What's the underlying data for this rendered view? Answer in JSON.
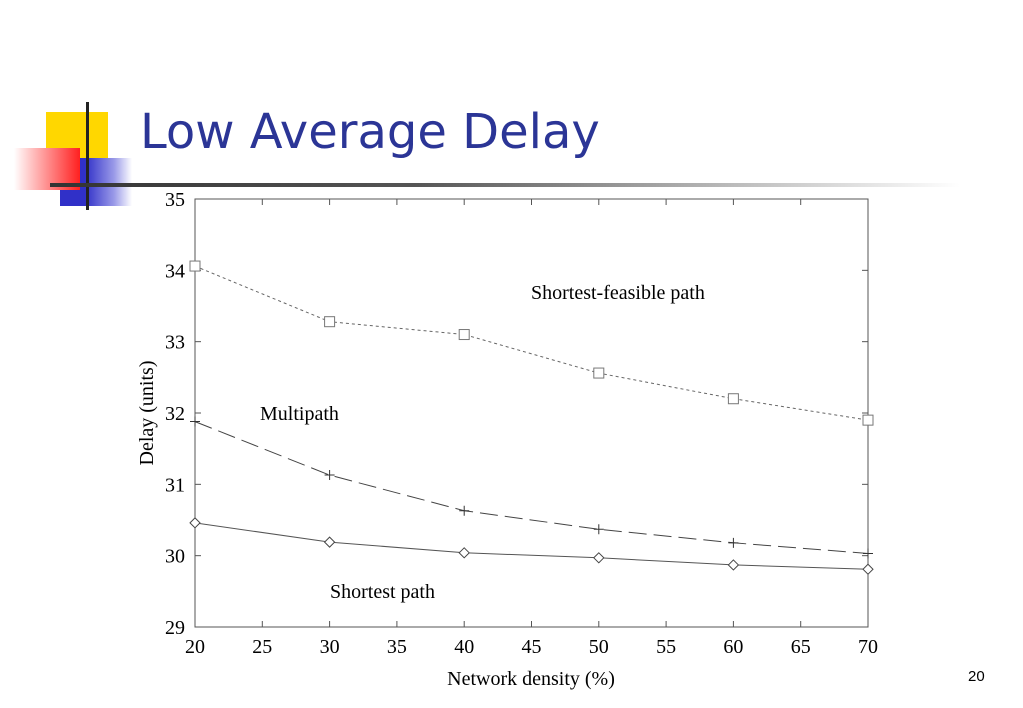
{
  "slide": {
    "title": "Low Average Delay",
    "page_number": "20"
  },
  "colors": {
    "title": "#2b3596",
    "decor_yellow": "#ffd700",
    "decor_red": "#ff2020",
    "decor_blue": "#3030c8"
  },
  "chart_data": {
    "type": "line",
    "title": "",
    "xlabel": "Network density (%)",
    "ylabel": "Delay (units)",
    "xlim": [
      20,
      70
    ],
    "ylim": [
      29,
      35
    ],
    "xticks": [
      20,
      25,
      30,
      35,
      40,
      45,
      50,
      55,
      60,
      65,
      70
    ],
    "yticks": [
      29,
      30,
      31,
      32,
      33,
      34,
      35
    ],
    "grid": false,
    "series": [
      {
        "name": "Shortest-feasible path",
        "marker": "square",
        "line_style": "dotted",
        "x": [
          20,
          30,
          40,
          50,
          60,
          70
        ],
        "y": [
          34.06,
          33.28,
          33.1,
          32.56,
          32.2,
          31.9
        ]
      },
      {
        "name": "Multipath",
        "marker": "plus",
        "line_style": "long-dash",
        "x": [
          20,
          30,
          40,
          50,
          60,
          70
        ],
        "y": [
          31.88,
          31.13,
          30.63,
          30.37,
          30.18,
          30.03
        ]
      },
      {
        "name": "Shortest path",
        "marker": "diamond",
        "line_style": "solid",
        "x": [
          20,
          30,
          40,
          50,
          60,
          70
        ],
        "y": [
          30.46,
          30.19,
          30.04,
          29.97,
          29.87,
          29.81
        ]
      }
    ]
  }
}
